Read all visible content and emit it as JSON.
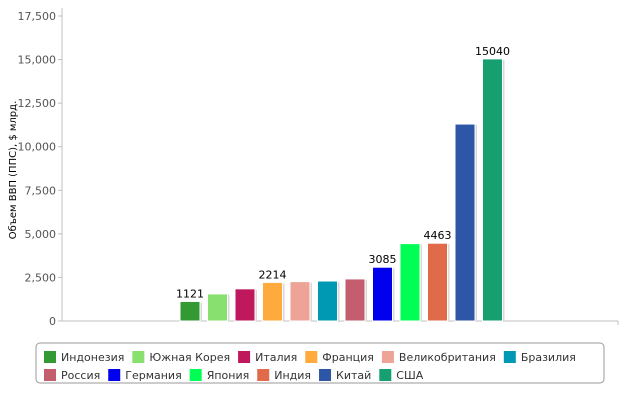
{
  "chart_data": {
    "type": "bar",
    "ylabel": "Объем ВВП (ППС), $ млрд.",
    "ylim": [
      0,
      17500
    ],
    "yticks": [
      "0",
      "2,500",
      "5,000",
      "7,500",
      "10,000",
      "12,500",
      "15,000",
      "17,500"
    ],
    "ytick_values": [
      0,
      2500,
      5000,
      7500,
      10000,
      12500,
      15000,
      17500
    ],
    "grid": false,
    "legend_position": "bottom",
    "series": [
      {
        "name": "Индонезия",
        "value": 1121,
        "color": "#339933",
        "label": "1121"
      },
      {
        "name": "Южная Корея",
        "value": 1554,
        "color": "#88e06e",
        "label": ""
      },
      {
        "name": "Италия",
        "value": 1846,
        "color": "#c0185c",
        "label": ""
      },
      {
        "name": "Франция",
        "value": 2214,
        "color": "#ffaa3c",
        "label": "2214"
      },
      {
        "name": "Великобритания",
        "value": 2260,
        "color": "#eda497",
        "label": ""
      },
      {
        "name": "Бразилия",
        "value": 2294,
        "color": "#0099b4",
        "label": ""
      },
      {
        "name": "Россия",
        "value": 2414,
        "color": "#c45e6e",
        "label": ""
      },
      {
        "name": "Германия",
        "value": 3085,
        "color": "#0000ee",
        "label": "3085"
      },
      {
        "name": "Япония",
        "value": 4440,
        "color": "#00ff55",
        "label": ""
      },
      {
        "name": "Индия",
        "value": 4463,
        "color": "#e06a4a",
        "label": "4463"
      },
      {
        "name": "Китай",
        "value": 11300,
        "color": "#2d56a6",
        "label": ""
      },
      {
        "name": "США",
        "value": 15040,
        "color": "#16a070",
        "label": "15040"
      }
    ]
  }
}
